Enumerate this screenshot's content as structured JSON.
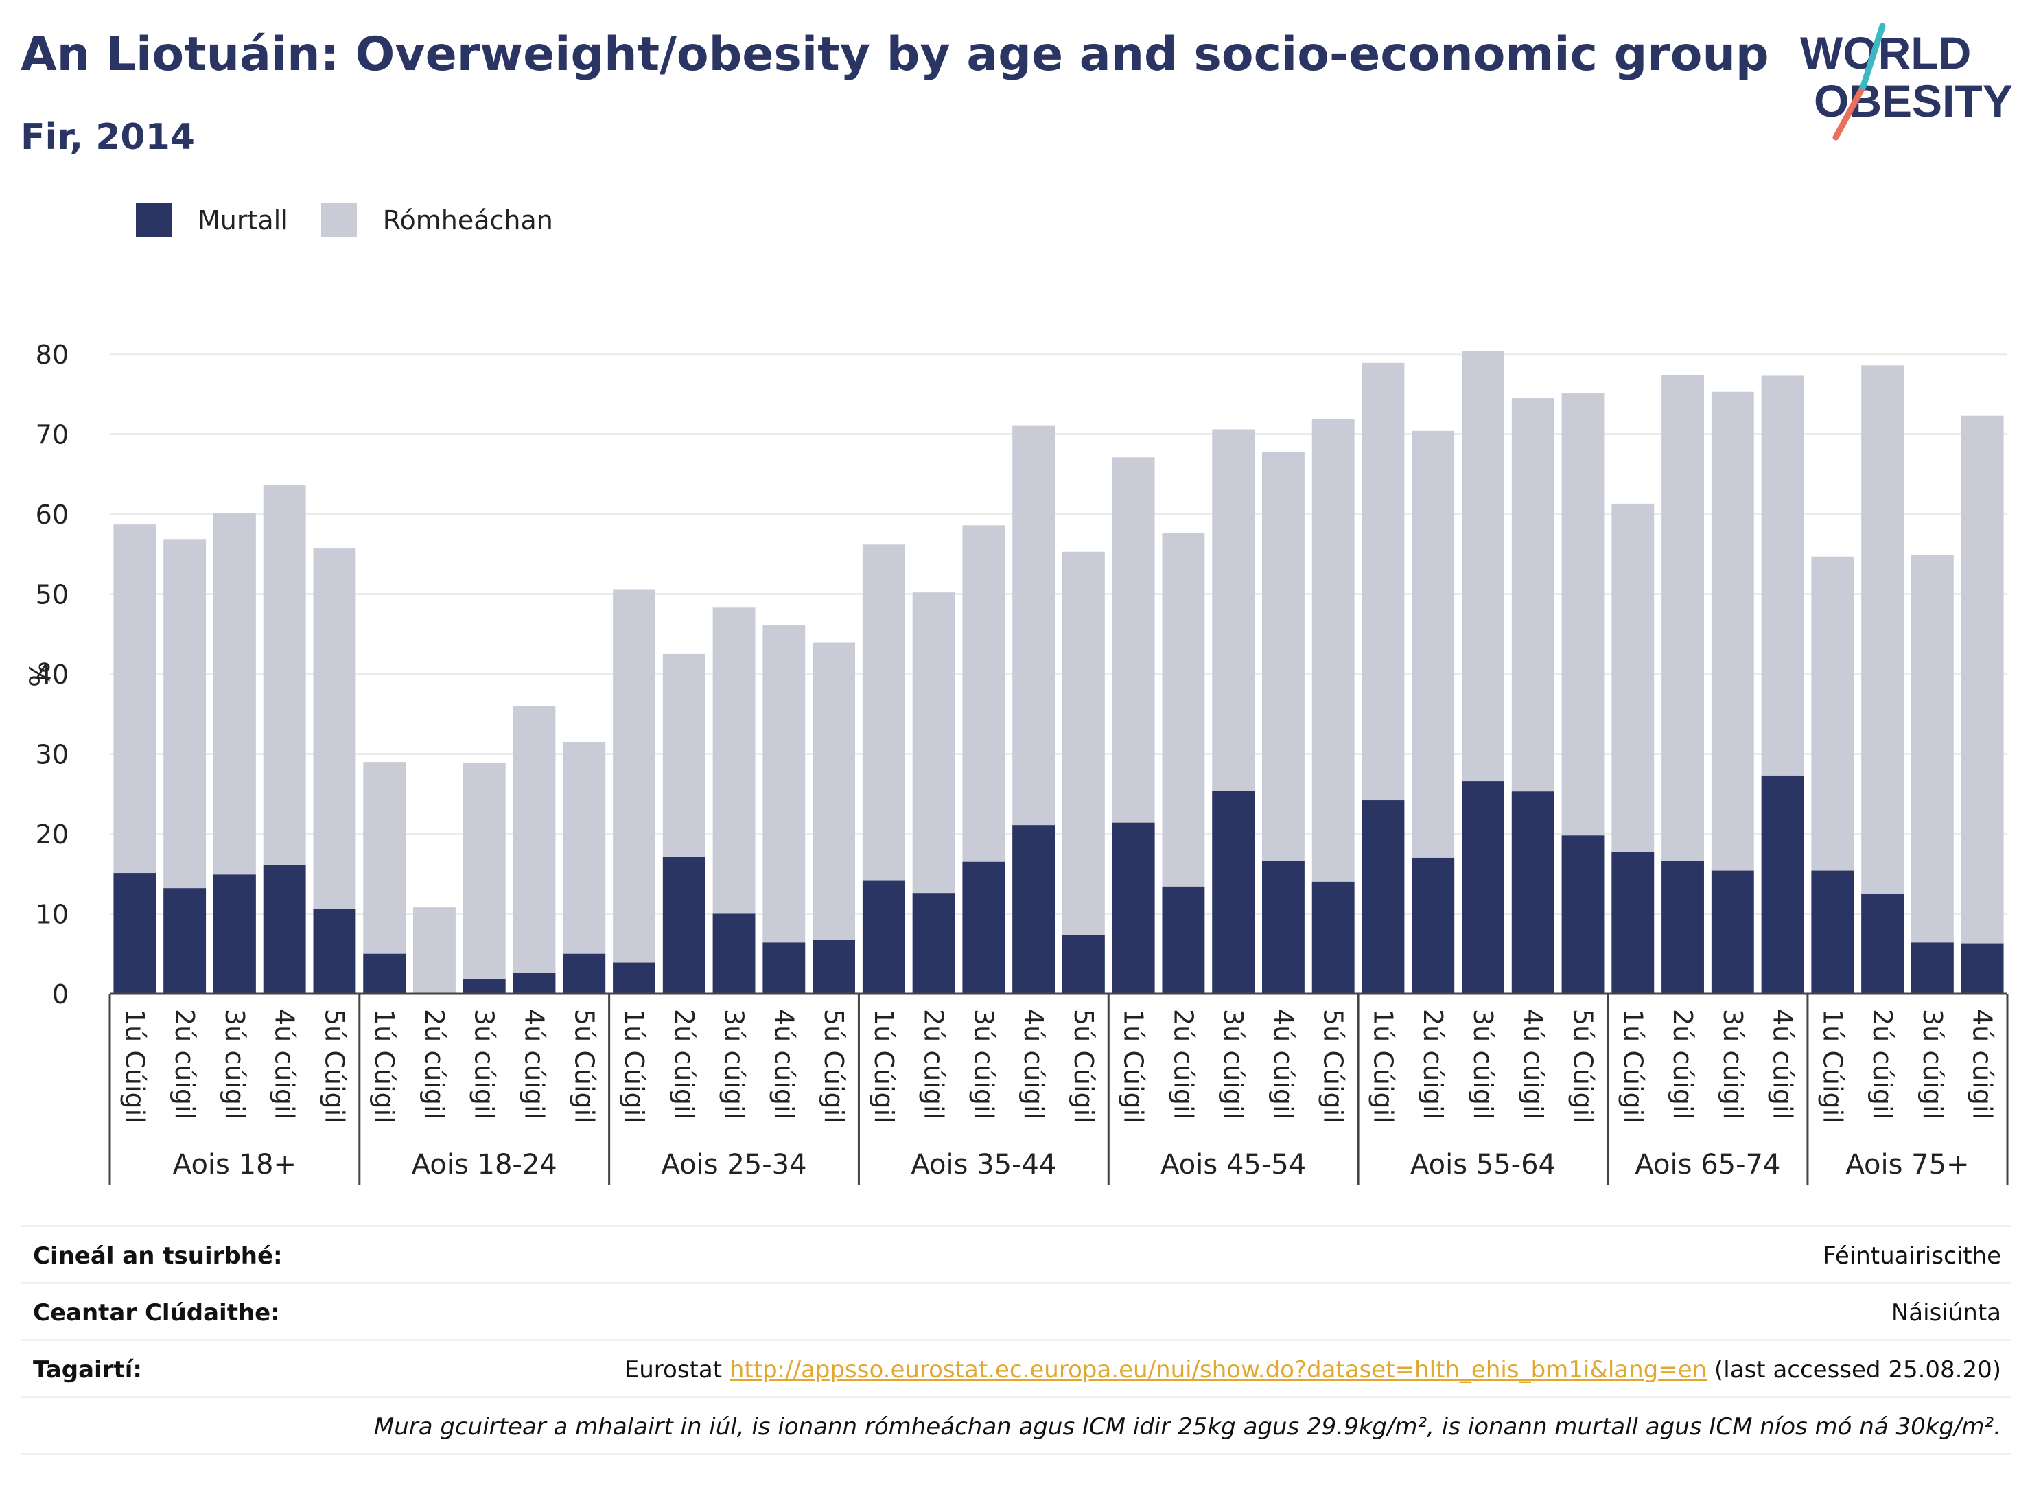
{
  "title": "An Liotuáin: Overweight/obesity by age and socio-economic group",
  "subtitle": "Fir, 2014",
  "logo": {
    "line1": "WORLD",
    "line2": "OBESITY"
  },
  "legend": [
    {
      "label": "Murtall",
      "color": "#2b3563"
    },
    {
      "label": "Rómheáchan",
      "color": "#c9cbd6"
    }
  ],
  "chart_data": {
    "type": "bar",
    "stacked": true,
    "ylabel": "%",
    "ylim": [
      0,
      80
    ],
    "yticks": [
      0,
      10,
      20,
      30,
      40,
      50,
      60,
      70,
      80
    ],
    "grid": true,
    "groups": [
      {
        "name": "Aois 18+",
        "categories": [
          "1ú Cúigil",
          "2ú cúigil",
          "3ú cúigil",
          "4ú cúigil",
          "5ú Cúigil"
        ],
        "obese": [
          15.1,
          13.2,
          14.9,
          16.1,
          10.6
        ],
        "total": [
          58.7,
          56.8,
          60.1,
          63.6,
          55.7
        ]
      },
      {
        "name": "Aois 18-24",
        "categories": [
          "1ú Cúigil",
          "2ú cúigil",
          "3ú cúigil",
          "4ú cúigil",
          "5ú Cúigil"
        ],
        "obese": [
          5.0,
          0,
          1.8,
          2.6,
          5.0
        ],
        "total": [
          29.0,
          10.8,
          28.9,
          36.0,
          31.5
        ]
      },
      {
        "name": "Aois 25-34",
        "categories": [
          "1ú Cúigil",
          "2ú cúigil",
          "3ú cúigil",
          "4ú cúigil",
          "5ú Cúigil"
        ],
        "obese": [
          3.9,
          17.1,
          10.0,
          6.4,
          6.7
        ],
        "total": [
          50.6,
          42.5,
          48.3,
          46.1,
          43.9
        ]
      },
      {
        "name": "Aois 35-44",
        "categories": [
          "1ú Cúigil",
          "2ú cúigil",
          "3ú cúigil",
          "4ú cúigil",
          "5ú Cúigil"
        ],
        "obese": [
          14.2,
          12.6,
          16.5,
          21.1,
          7.3
        ],
        "total": [
          56.2,
          50.2,
          58.6,
          71.1,
          55.3
        ]
      },
      {
        "name": "Aois 45-54",
        "categories": [
          "1ú Cúigil",
          "2ú cúigil",
          "3ú cúigil",
          "4ú cúigil",
          "5ú Cúigil"
        ],
        "obese": [
          21.4,
          13.4,
          25.4,
          16.6,
          14.0
        ],
        "total": [
          67.1,
          57.6,
          70.6,
          67.8,
          71.9
        ]
      },
      {
        "name": "Aois 55-64",
        "categories": [
          "1ú Cúigil",
          "2ú cúigil",
          "3ú cúigil",
          "4ú cúigil",
          "5ú Cúigil"
        ],
        "obese": [
          24.2,
          17.0,
          26.6,
          25.3,
          19.8
        ],
        "total": [
          78.9,
          70.4,
          80.4,
          74.5,
          75.1
        ]
      },
      {
        "name": "Aois 65-74",
        "categories": [
          "1ú Cúigil",
          "2ú cúigil",
          "3ú cúigil",
          "4ú cúigil"
        ],
        "obese": [
          17.7,
          16.6,
          15.4,
          27.3
        ],
        "total": [
          61.3,
          77.4,
          75.3,
          77.3
        ]
      },
      {
        "name": "Aois 75+",
        "categories": [
          "1ú Cúigil",
          "2ú cúigil",
          "3ú cúigil",
          "4ú cúigil"
        ],
        "obese": [
          15.4,
          12.5,
          6.4,
          6.3
        ],
        "total": [
          54.7,
          78.6,
          54.9,
          72.3
        ]
      }
    ]
  },
  "info": {
    "survey_label": "Cineál an tsuirbhé:",
    "survey_value": "Féintuairiscithe",
    "area_label": "Ceantar Clúdaithe:",
    "area_value": "Náisiúnta",
    "ref_label": "Tagairtí:",
    "ref_prefix": "Eurostat ",
    "ref_link": "http://appsso.eurostat.ec.europa.eu/nui/show.do?dataset=hlth_ehis_bm1i&lang=en",
    "ref_suffix": " (last accessed 25.08.20)",
    "note": "Mura gcuirtear a mhalairt in iúl, is ionann rómheáchan agus ICM idir 25kg agus 29.9kg/m², is ionann murtall agus ICM níos mó ná 30kg/m²."
  }
}
